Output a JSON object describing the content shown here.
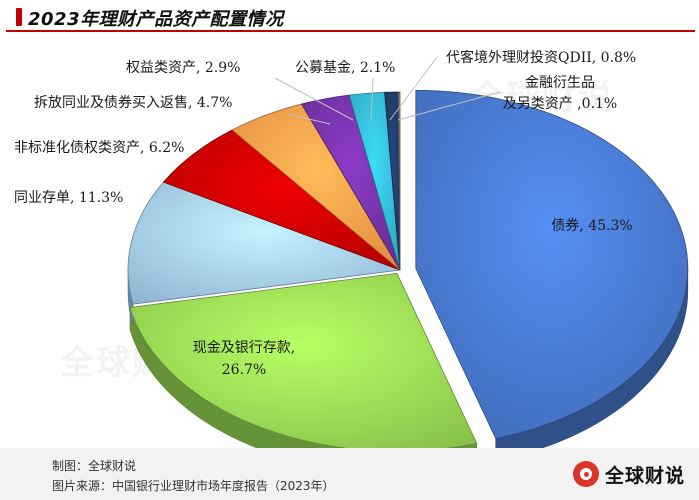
{
  "title": "2023年理财产品资产配置情况",
  "watermark": "全球财说",
  "footer": {
    "maker": "制图：全球财说",
    "source": "图片来源：中国银行业理财市场年度报告（2023年）"
  },
  "brand": {
    "name": "全球财说",
    "logo_icon": "brand-logo-icon"
  },
  "chart_data": {
    "type": "pie",
    "title": "2023年理财产品资产配置情况",
    "slices": [
      {
        "name": "债券",
        "value": 45.3,
        "label": "债券, 45.3%",
        "color": "#4472c4"
      },
      {
        "name": "现金及银行存款",
        "value": 26.7,
        "label_lines": [
          "现金及银行存款,",
          "26.7%"
        ],
        "color": "#92d050"
      },
      {
        "name": "同业存单",
        "value": 11.3,
        "label": "同业存单, 11.3%",
        "color": "#9dc3e6"
      },
      {
        "name": "非标准化债权类资产",
        "value": 6.2,
        "label": "非标准化债权类资产, 6.2%",
        "color": "#c00000"
      },
      {
        "name": "拆放同业及债券买入返售",
        "value": 4.7,
        "label": "拆放同业及债券买入返售, 4.7%",
        "color": "#f79646"
      },
      {
        "name": "权益类资产",
        "value": 2.9,
        "label": "权益类资产, 2.9%",
        "color": "#7030a0"
      },
      {
        "name": "公募基金",
        "value": 2.1,
        "label": "公募基金, 2.1%",
        "color": "#31b0c9"
      },
      {
        "name": "代客境外理财投资QDII",
        "value": 0.8,
        "label": "代客境外理财投资QDII, 0.8%",
        "color": "#1f3864"
      },
      {
        "name": "金融衍生品及另类资产",
        "value": 0.1,
        "label_lines": [
          "金融衍生品",
          "及另类资产 ,0.1%"
        ],
        "color": "#7f7f7f"
      }
    ]
  }
}
